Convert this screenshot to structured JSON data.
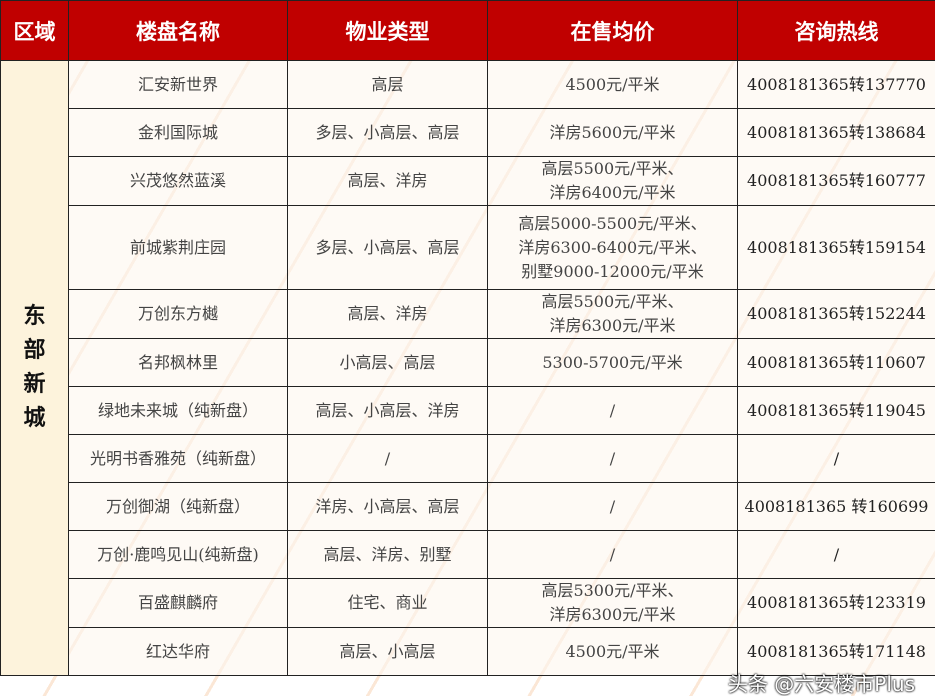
{
  "headers": [
    "区域",
    "楼盘名称",
    "物业类型",
    "在售均价",
    "咨询热线"
  ],
  "region": "东部新城",
  "rows": [
    {
      "name": "汇安新世界",
      "type": "高层",
      "price": "4500元/平米",
      "phone": "4008181365转137770"
    },
    {
      "name": "金利国际城",
      "type": "多层、小高层、高层",
      "price": "洋房5600元/平米",
      "phone": "4008181365转138684"
    },
    {
      "name": "兴茂悠然蓝溪",
      "type": "高层、洋房",
      "price": "高层5500元/平米、\n洋房6400元/平米",
      "phone": "4008181365转160777"
    },
    {
      "name": "前城紫荆庄园",
      "type": "多层、小高层、高层",
      "price": "高层5000-5500元/平米、\n洋房6300-6400元/平米、\n别墅9000-12000元/平米",
      "phone": "4008181365转159154"
    },
    {
      "name": "万创东方樾",
      "type": "高层、洋房",
      "price": "高层5500元/平米、\n洋房6300元/平米",
      "phone": "4008181365转152244"
    },
    {
      "name": "名邦枫林里",
      "type": "小高层、高层",
      "price": "5300-5700元/平米",
      "phone": "4008181365转110607"
    },
    {
      "name": "绿地未来城（纯新盘）",
      "type": "高层、小高层、洋房",
      "price": "/",
      "phone": "4008181365转119045"
    },
    {
      "name": "光明书香雅苑（纯新盘）",
      "type": "/",
      "price": "/",
      "phone": "/"
    },
    {
      "name": "万创御湖（纯新盘）",
      "type": "洋房、小高层、高层",
      "price": "/",
      "phone": "4008181365 转160699"
    },
    {
      "name": "万创·鹿鸣见山(纯新盘)",
      "type": "高层、洋房、别墅",
      "price": "/",
      "phone": "/"
    },
    {
      "name": "百盛麒麟府",
      "type": "住宅、商业",
      "price": "高层5300元/平米、\n洋房6300元/平米",
      "phone": "4008181365转123319"
    },
    {
      "name": "红达华府",
      "type": "高层、小高层",
      "price": "4500元/平米",
      "phone": "4008181365转171148"
    }
  ],
  "watermark": "头条 @六安楼市Plus"
}
